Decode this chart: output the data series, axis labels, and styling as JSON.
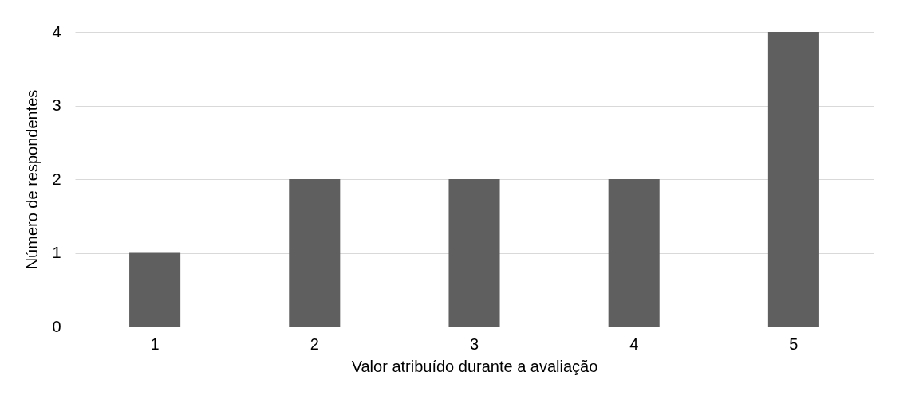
{
  "chart_data": {
    "type": "bar",
    "xlabel": "Valor atribuído durante a avaliação",
    "ylabel": "Número de respondentes",
    "categories": [
      "1",
      "2",
      "3",
      "4",
      "5"
    ],
    "values": [
      1,
      2,
      2,
      2,
      4
    ],
    "color": "#5f5f5f",
    "ylim": [
      0,
      4
    ],
    "yticks": [
      0,
      1,
      2,
      3,
      4
    ],
    "grid": "y"
  }
}
